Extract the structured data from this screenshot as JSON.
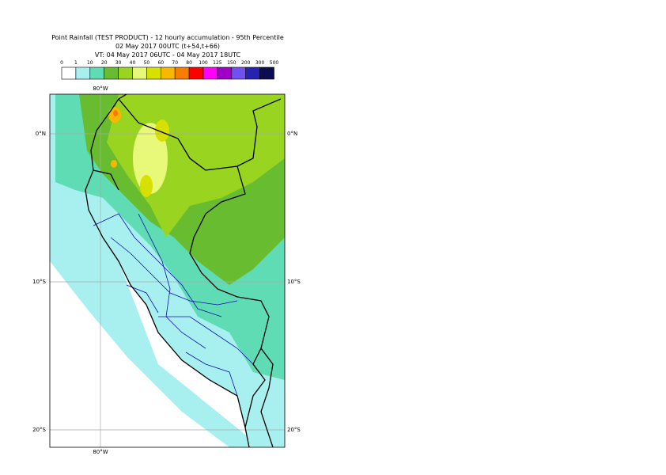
{
  "header": {
    "lines": [
      "Point Rainfall (TEST PRODUCT) - 12 hourly accumulation - 95th Percentile",
      "02 May 2017 00UTC (t+54,t+66)",
      "VT: 04 May 2017 06UTC - 04 May 2017 18UTC"
    ]
  },
  "legend": {
    "labels": [
      "0",
      "1",
      "10",
      "20",
      "30",
      "40",
      "50",
      "60",
      "70",
      "80",
      "100",
      "125",
      "150",
      "200",
      "300",
      "500"
    ],
    "colors": [
      "#ffffff",
      "#a8f0f0",
      "#60dcb4",
      "#68bc30",
      "#98d420",
      "#e8f878",
      "#d8e000",
      "#f8b800",
      "#f87c00",
      "#ff0000",
      "#ff00ff",
      "#a000c8",
      "#7050f0",
      "#2424b0",
      "#0c0c50"
    ]
  },
  "map": {
    "lon_label": "80°W",
    "lat_labels": [
      "0°N",
      "10°S",
      "20°S"
    ]
  }
}
